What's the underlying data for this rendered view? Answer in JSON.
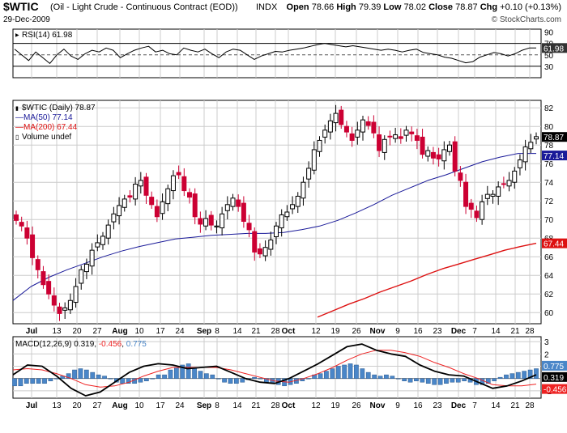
{
  "header": {
    "symbol": "$WTIC",
    "description": "(Oil - Light Crude - Continuous Contract (EOD))",
    "exchange": "INDX",
    "date": "29-Dec-2009",
    "watermark": "© StockCharts.com",
    "ohlc": {
      "open_label": "Open",
      "open": "78.66",
      "high_label": "High",
      "high": "79.39",
      "low_label": "Low",
      "low": "78.02",
      "close_label": "Close",
      "close": "78.87",
      "chg_label": "Chg",
      "chg": "+0.10 (+0.13%)"
    }
  },
  "colors": {
    "candle_up": "#000000",
    "candle_down": "#cc0033",
    "ma50": "#1a1a99",
    "ma200": "#dd1111",
    "macd": "#000000",
    "signal": "#ee2222",
    "histogram": "#4a86c8",
    "grid": "#cccccc",
    "rsi_line": "#000000"
  },
  "chart_data": [
    {
      "type": "line",
      "panel": "rsi",
      "legend": "RSI(14) 61.98",
      "current_value": "61.98",
      "ylim": [
        10,
        95
      ],
      "yticks": [
        30,
        50,
        70,
        90
      ],
      "reference_lines": [
        30,
        70
      ],
      "midline": 50,
      "series": [
        {
          "name": "RSI(14)",
          "values": [
            60,
            50,
            40,
            55,
            45,
            35,
            50,
            60,
            48,
            42,
            52,
            58,
            55,
            62,
            58,
            45,
            52,
            58,
            62,
            65,
            55,
            58,
            52,
            50,
            62,
            58,
            55,
            60,
            52,
            45,
            55,
            60,
            58,
            50,
            42,
            48,
            52,
            56,
            55,
            58,
            60,
            62,
            65,
            68,
            70,
            68,
            66,
            64,
            66,
            64,
            62,
            60,
            58,
            60,
            58,
            55,
            58,
            60,
            54,
            52,
            50,
            46,
            44,
            40,
            36,
            38,
            46,
            50,
            54,
            52,
            48,
            52,
            58,
            62,
            62
          ]
        }
      ]
    },
    {
      "type": "candlestick",
      "panel": "price",
      "legend": [
        "$WTIC (Daily) 78.87",
        "MA(50) 77.14",
        "MA(200) 67.44",
        "Volume undef"
      ],
      "ylim": [
        58.8,
        82.8
      ],
      "yticks": [
        60,
        62,
        64,
        66,
        68,
        70,
        72,
        74,
        76,
        78,
        80,
        82
      ],
      "last_labels": [
        "78.87",
        "77.14",
        "67.44"
      ],
      "x_labels": [
        "Jul",
        "13",
        "20",
        "27",
        "Aug",
        "10",
        "17",
        "24",
        "Sep",
        "8",
        "14",
        "21",
        "28",
        "Oct",
        "12",
        "19",
        "26",
        "Nov",
        "9",
        "16",
        "23",
        "Dec",
        "7",
        "14",
        "21",
        "28"
      ],
      "closes": [
        69.9,
        69.3,
        68.0,
        65.9,
        64.6,
        63.0,
        62.0,
        60.8,
        59.9,
        60.5,
        61.3,
        62.8,
        64.6,
        65.2,
        66.7,
        67.5,
        68.2,
        69.4,
        70.6,
        71.5,
        72.2,
        72.4,
        73.8,
        74.2,
        72.6,
        71.6,
        70.3,
        71.9,
        73.3,
        74.7,
        74.8,
        73.1,
        72.4,
        70.3,
        69.5,
        70.1,
        69.4,
        69.3,
        70.6,
        71.6,
        72.3,
        71.4,
        69.8,
        68.9,
        66.5,
        66.3,
        67.0,
        67.8,
        69.3,
        70.5,
        70.8,
        71.6,
        72.5,
        74.0,
        75.5,
        77.5,
        78.5,
        79.6,
        80.6,
        81.4,
        80.2,
        79.4,
        78.5,
        79.6,
        80.7,
        80.1,
        79.3,
        77.4,
        78.6,
        78.9,
        79.1,
        78.7,
        79.6,
        79.2,
        78.5,
        77.0,
        77.4,
        76.6,
        76.5,
        77.5,
        78.0,
        75.2,
        74.2,
        71.4,
        71.1,
        70.2,
        71.9,
        72.7,
        72.7,
        73.5,
        73.8,
        74.2,
        75.2,
        76.4,
        77.8,
        78.3,
        78.9
      ],
      "series": [
        {
          "name": "MA(50)",
          "values": [
            61.3,
            62.8,
            63.8,
            64.6,
            65.3,
            66.0,
            66.6,
            67.1,
            67.5,
            67.9,
            68.1,
            68.3,
            68.4,
            68.5,
            68.5,
            68.6,
            68.9,
            69.3,
            69.9,
            70.7,
            71.6,
            72.6,
            73.4,
            74.2,
            74.8,
            75.5,
            76.2,
            76.7,
            77.1,
            77.1
          ]
        },
        {
          "name": "MA(200)",
          "values": [
            59.5,
            60.2,
            60.9,
            61.5,
            62.2,
            62.8,
            63.4,
            64.1,
            64.7,
            65.2,
            65.7,
            66.2,
            66.7,
            67.1,
            67.44
          ]
        },
        {
          "name": "Volume",
          "values": []
        }
      ]
    },
    {
      "type": "line",
      "panel": "macd",
      "legend": {
        "prefix": "MACD(12,26,9)",
        "macd": "0.319",
        "signal": "-0.456",
        "hist": "0.775"
      },
      "ylim": [
        -1.6,
        3.4
      ],
      "yticks": [
        -1,
        0,
        1,
        2,
        3
      ],
      "last_labels": [
        "0.775",
        "0.319",
        "-0.456"
      ],
      "x_labels": [
        "Jul",
        "13",
        "20",
        "27",
        "Aug",
        "10",
        "17",
        "24",
        "Sep",
        "8",
        "14",
        "21",
        "28",
        "Oct",
        "12",
        "19",
        "26",
        "Nov",
        "9",
        "16",
        "23",
        "Dec",
        "7",
        "14",
        "21",
        "28"
      ],
      "series": [
        {
          "name": "MACD",
          "values": [
            0.3,
            1.1,
            1.0,
            0.2,
            -0.8,
            -1.4,
            -1.1,
            -0.3,
            0.5,
            1.0,
            1.2,
            1.1,
            0.8,
            0.9,
            1.0,
            0.5,
            0.0,
            -0.3,
            -0.4,
            0.0,
            0.6,
            1.2,
            1.9,
            2.6,
            2.8,
            2.3,
            2.0,
            1.8,
            1.1,
            0.6,
            0.3,
            0.2,
            -0.3,
            -0.8,
            -0.6,
            -0.2,
            0.3
          ]
        },
        {
          "name": "Signal",
          "values": [
            0.7,
            0.8,
            0.7,
            0.4,
            0.0,
            -0.5,
            -0.7,
            -0.6,
            -0.3,
            0.2,
            0.6,
            0.9,
            0.9,
            0.9,
            0.9,
            0.7,
            0.4,
            0.1,
            -0.2,
            -0.3,
            0.0,
            0.4,
            0.9,
            1.5,
            2.0,
            2.3,
            2.3,
            2.1,
            1.8,
            1.3,
            0.9,
            0.4,
            0.0,
            -0.5,
            -0.6,
            -0.6,
            -0.456
          ]
        },
        {
          "name": "Histogram",
          "values": [
            -0.6,
            -0.6,
            -0.4,
            -0.4,
            -0.4,
            -0.4,
            -0.2,
            0.0,
            0.2,
            0.4,
            0.7,
            0.8,
            0.7,
            0.5,
            0.3,
            0.2,
            0.0,
            -0.3,
            -0.4,
            -0.4,
            -0.4,
            -0.3,
            -0.2,
            0.0,
            0.3,
            0.3,
            0.7,
            0.9,
            1.1,
            1.2,
            0.9,
            0.6,
            0.4,
            0.3,
            0.0,
            -0.3,
            -0.4,
            -0.4,
            -0.3,
            -0.1,
            0.1,
            0.0,
            -0.3,
            -0.4,
            -0.5,
            -0.6,
            -0.5,
            -0.4,
            -0.2,
            0.0,
            0.3,
            0.4,
            0.6,
            0.8,
            1.0,
            1.1,
            1.2,
            1.1,
            0.8,
            0.5,
            0.3,
            0.2,
            0.3,
            0.2,
            0.0,
            -0.2,
            -0.3,
            -0.2,
            -0.3,
            -0.4,
            -0.5,
            -0.5,
            -0.4,
            -0.3,
            -0.3,
            -0.2,
            -0.3,
            -0.5,
            -0.5,
            -0.4,
            -0.2,
            0.1,
            0.3,
            0.4,
            0.5,
            0.6,
            0.7,
            0.8
          ]
        }
      ]
    }
  ]
}
